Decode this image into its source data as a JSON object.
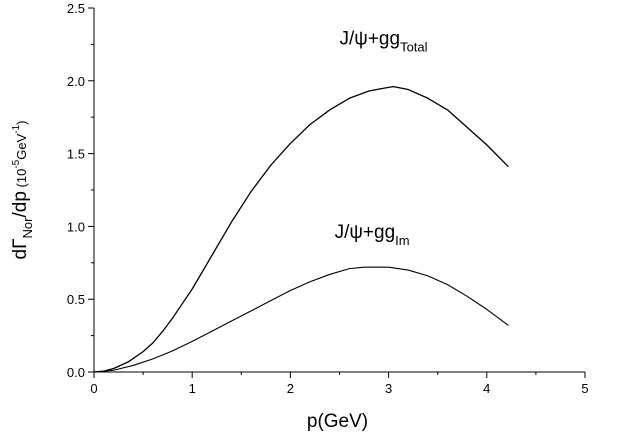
{
  "chart_data": {
    "type": "line",
    "xlabel": "p(GeV)",
    "ylabel": {
      "main_prefix": "dΓ",
      "main_sub": "Nor",
      "main_suffix": "/dp",
      "unit_prefix": "(10",
      "unit_exp": "-5",
      "unit_mid": "GeV",
      "unit_exp2": "-1",
      "unit_suffix": ")"
    },
    "xlim": [
      0,
      5
    ],
    "ylim": [
      0,
      2.5
    ],
    "x_ticks": [
      "0",
      "1",
      "2",
      "3",
      "4",
      "5"
    ],
    "y_ticks": [
      "0.0",
      "0.5",
      "1.0",
      "1.5",
      "2.0",
      "2.5"
    ],
    "grid": false,
    "series": [
      {
        "name": "J/ψ+gg_Total",
        "label_main": "J/ψ+gg",
        "label_sub": "Total",
        "label_anchor": [
          2.5,
          2.25
        ],
        "x": [
          0,
          0.1,
          0.2,
          0.35,
          0.5,
          0.6,
          0.7,
          0.8,
          0.9,
          1.0,
          1.2,
          1.4,
          1.6,
          1.8,
          2.0,
          2.2,
          2.4,
          2.6,
          2.8,
          3.0,
          3.05,
          3.2,
          3.4,
          3.6,
          3.8,
          4.0,
          4.22
        ],
        "y": [
          0,
          0.006,
          0.024,
          0.07,
          0.14,
          0.2,
          0.28,
          0.37,
          0.47,
          0.57,
          0.8,
          1.03,
          1.24,
          1.42,
          1.57,
          1.7,
          1.8,
          1.88,
          1.93,
          1.955,
          1.96,
          1.94,
          1.88,
          1.8,
          1.68,
          1.56,
          1.41
        ]
      },
      {
        "name": "J/ψ+gg_Im",
        "label_main": "J/ψ+gg",
        "label_sub": "Im",
        "label_anchor": [
          2.45,
          0.92
        ],
        "x": [
          0,
          0.2,
          0.4,
          0.6,
          0.8,
          1.0,
          1.2,
          1.4,
          1.6,
          1.8,
          2.0,
          2.2,
          2.4,
          2.6,
          2.75,
          2.9,
          3.0,
          3.2,
          3.4,
          3.6,
          3.8,
          4.0,
          4.22
        ],
        "y": [
          0,
          0.012,
          0.045,
          0.09,
          0.145,
          0.21,
          0.28,
          0.35,
          0.42,
          0.49,
          0.56,
          0.62,
          0.67,
          0.71,
          0.72,
          0.72,
          0.72,
          0.7,
          0.66,
          0.6,
          0.52,
          0.43,
          0.32
        ]
      }
    ]
  }
}
